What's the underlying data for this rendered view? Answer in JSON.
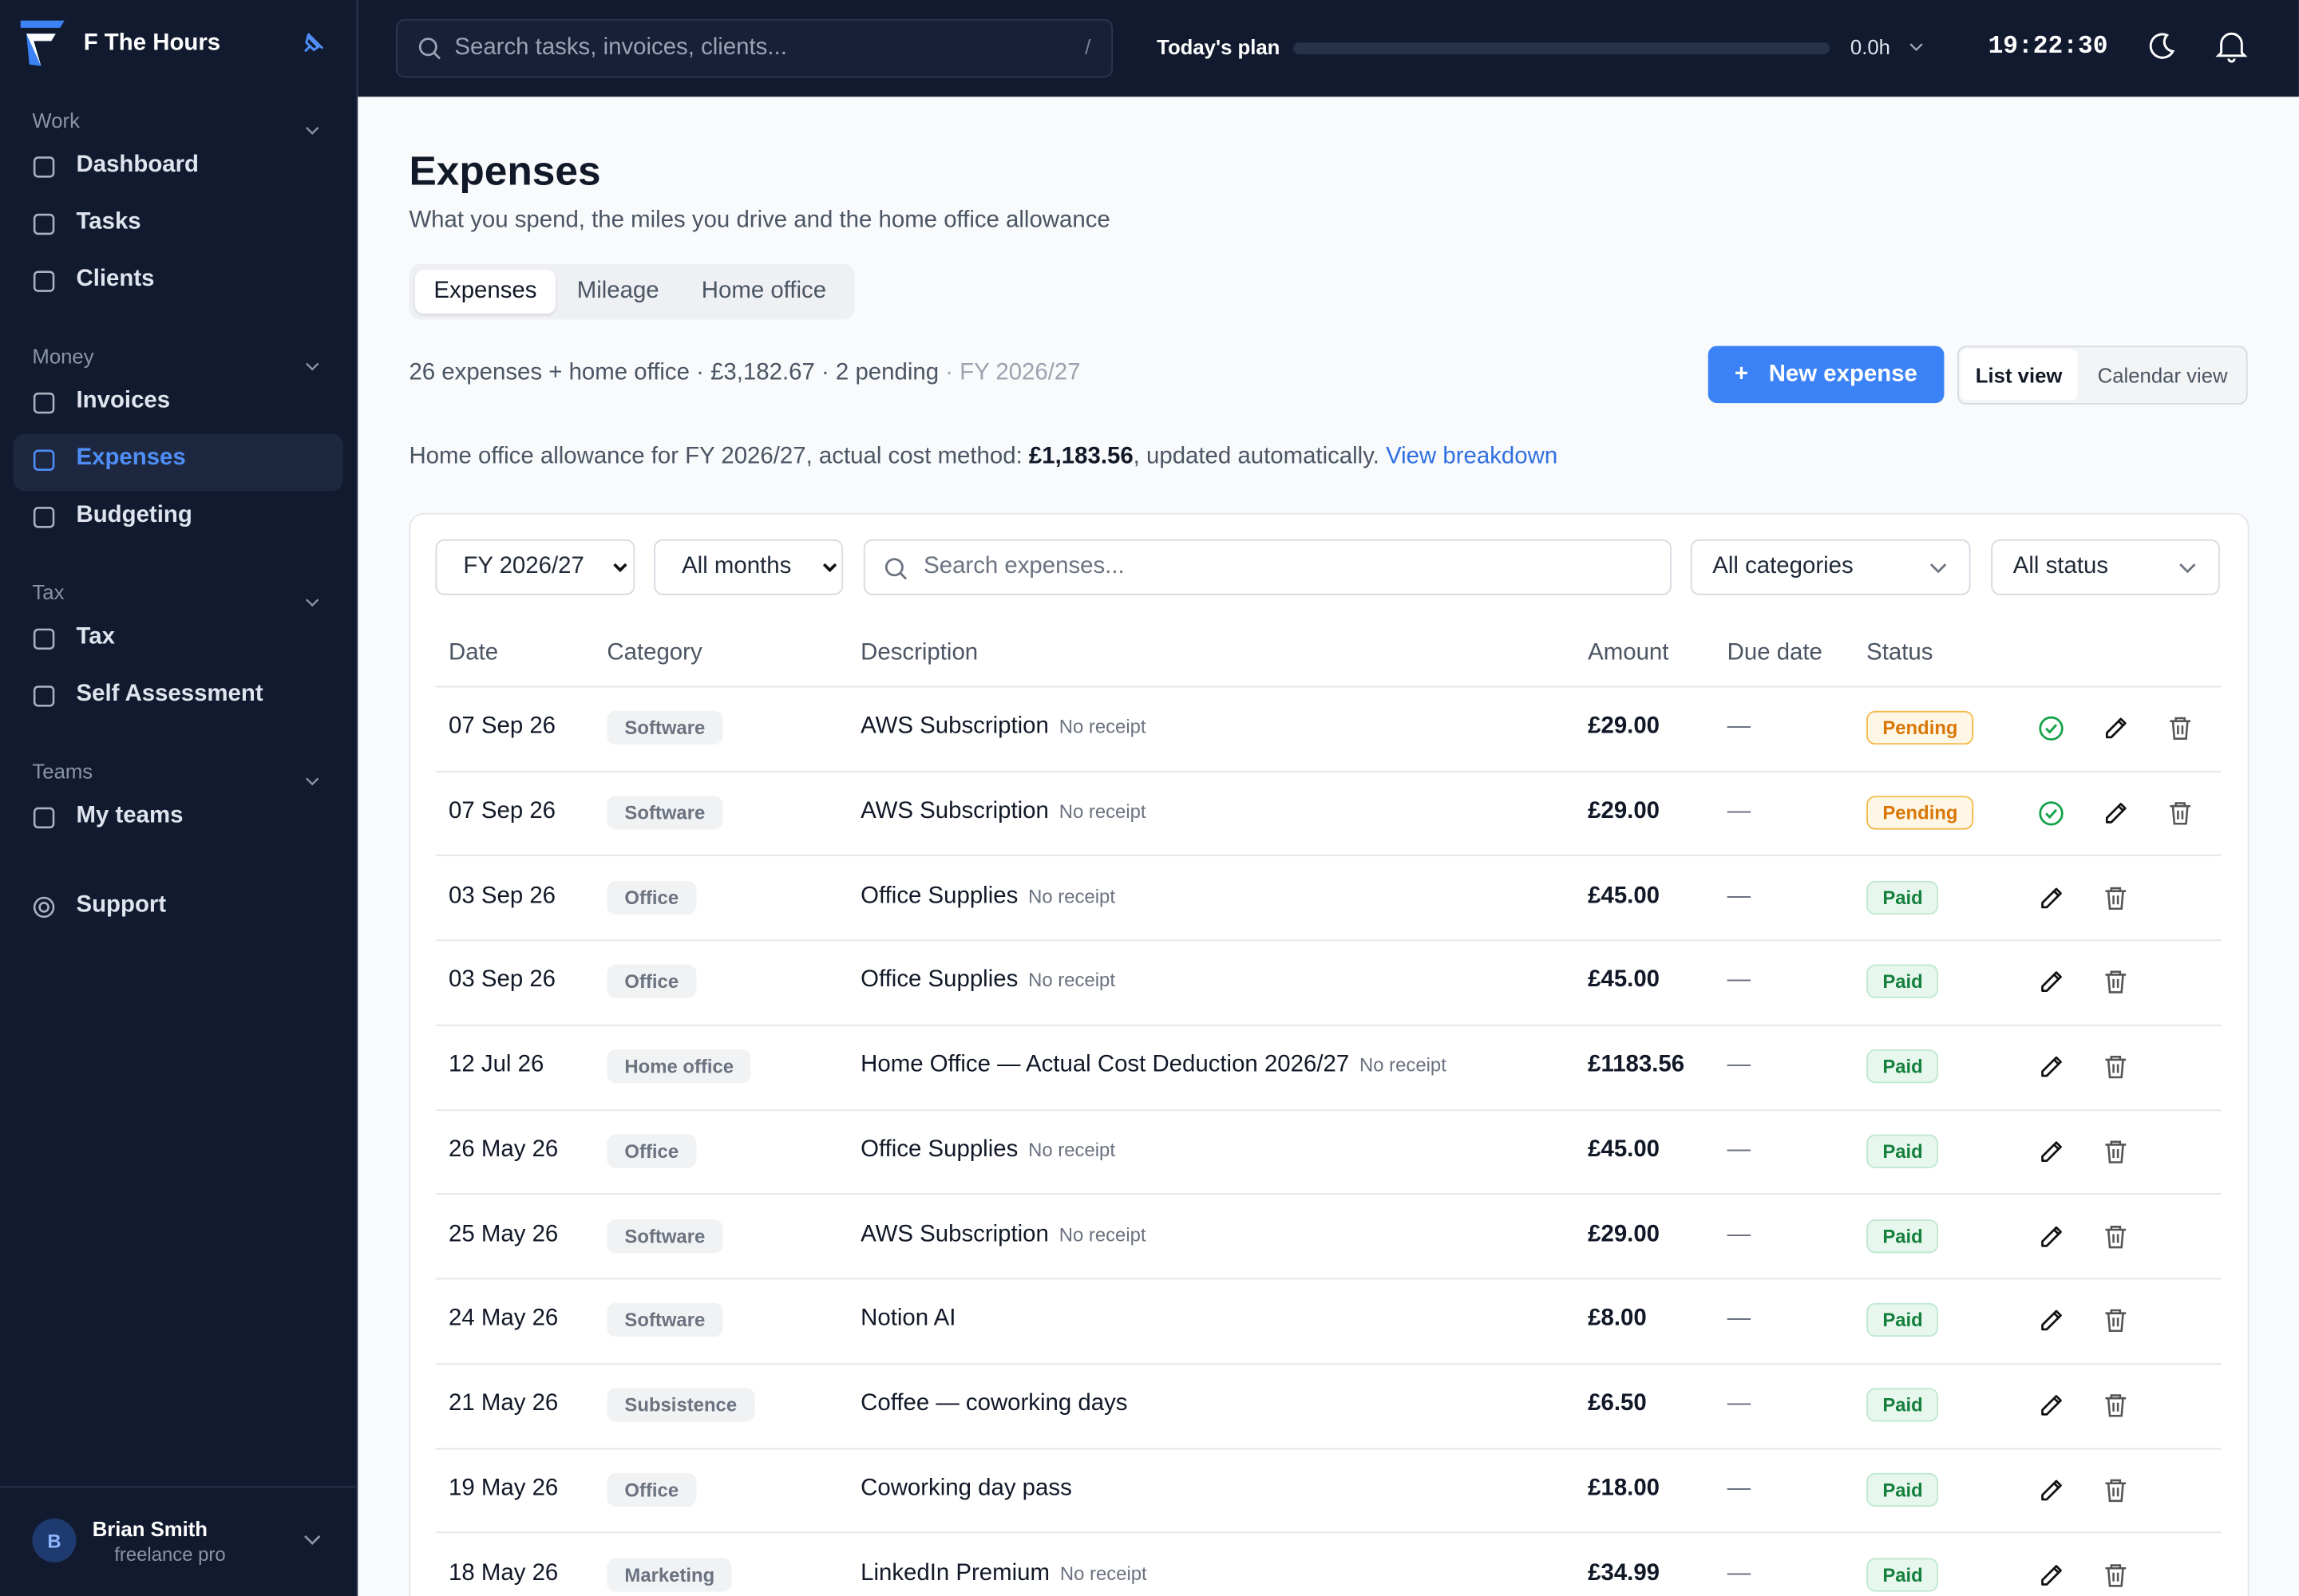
{
  "sidebar": {
    "brand": "F The Hours",
    "sections": [
      {
        "title": "Work",
        "items": [
          "Dashboard",
          "Tasks",
          "Clients"
        ]
      },
      {
        "title": "Money",
        "items": [
          "Invoices",
          "Expenses",
          "Budgeting"
        ]
      },
      {
        "title": "Tax",
        "items": [
          "Tax",
          "Self Assessment"
        ]
      },
      {
        "title": "Teams",
        "items": [
          "My teams"
        ]
      }
    ],
    "support": "Support",
    "user": {
      "initial": "B",
      "name": "Brian Smith",
      "plan": "freelance pro"
    }
  },
  "topbar": {
    "search_placeholder": "Search tasks, invoices, clients...",
    "shortcut": "/",
    "plan_label": "Today's plan",
    "plan_hours": "0.0h",
    "clock": "19:22:30"
  },
  "header": {
    "title": "Expenses",
    "subtitle": "What you spend, the miles you drive and the home office allowance"
  },
  "tabs": [
    "Expenses",
    "Mileage",
    "Home office"
  ],
  "summary": {
    "main": "26 expenses + home office · £3,182.67 · 2 pending",
    "period": "· FY 2026/27"
  },
  "actions": {
    "plus": "+",
    "new": "New expense",
    "views": [
      "List view",
      "Calendar view"
    ]
  },
  "allowance": {
    "prefix": "Home office allowance for FY 2026/27, actual cost method:",
    "amount": "£1,183.56",
    "suffix": ", updated automatically.",
    "link": "View breakdown"
  },
  "filters": {
    "year": "FY 2026/27",
    "months": "All months",
    "search_placeholder": "Search expenses...",
    "category": "All categories",
    "status": "All status"
  },
  "table": {
    "columns": [
      "Date",
      "Category",
      "Description",
      "Amount",
      "Due date",
      "Status"
    ],
    "rows": [
      {
        "date": "07 Sep 26",
        "category": "Software",
        "description": "AWS Subscription",
        "receipt": "No receipt",
        "amount": "£29.00",
        "due": "—",
        "status": "Pending"
      },
      {
        "date": "07 Sep 26",
        "category": "Software",
        "description": "AWS Subscription",
        "receipt": "No receipt",
        "amount": "£29.00",
        "due": "—",
        "status": "Pending"
      },
      {
        "date": "03 Sep 26",
        "category": "Office",
        "description": "Office Supplies",
        "receipt": "No receipt",
        "amount": "£45.00",
        "due": "—",
        "status": "Paid"
      },
      {
        "date": "03 Sep 26",
        "category": "Office",
        "description": "Office Supplies",
        "receipt": "No receipt",
        "amount": "£45.00",
        "due": "—",
        "status": "Paid"
      },
      {
        "date": "12 Jul 26",
        "category": "Home office",
        "description": "Home Office — Actual Cost Deduction 2026/27",
        "receipt": "No receipt",
        "amount": "£1183.56",
        "due": "—",
        "status": "Paid"
      },
      {
        "date": "26 May 26",
        "category": "Office",
        "description": "Office Supplies",
        "receipt": "No receipt",
        "amount": "£45.00",
        "due": "—",
        "status": "Paid"
      },
      {
        "date": "25 May 26",
        "category": "Software",
        "description": "AWS Subscription",
        "receipt": "No receipt",
        "amount": "£29.00",
        "due": "—",
        "status": "Paid"
      },
      {
        "date": "24 May 26",
        "category": "Software",
        "description": "Notion AI",
        "amount": "£8.00",
        "due": "—",
        "status": "Paid"
      },
      {
        "date": "21 May 26",
        "category": "Subsistence",
        "description": "Coffee — coworking days",
        "amount": "£6.50",
        "due": "—",
        "status": "Paid"
      },
      {
        "date": "19 May 26",
        "category": "Office",
        "description": "Coworking day pass",
        "amount": "£18.00",
        "due": "—",
        "status": "Paid"
      },
      {
        "date": "18 May 26",
        "category": "Marketing",
        "description": "LinkedIn Premium",
        "receipt": "No receipt",
        "amount": "£34.99",
        "due": "—",
        "status": "Paid"
      }
    ]
  }
}
